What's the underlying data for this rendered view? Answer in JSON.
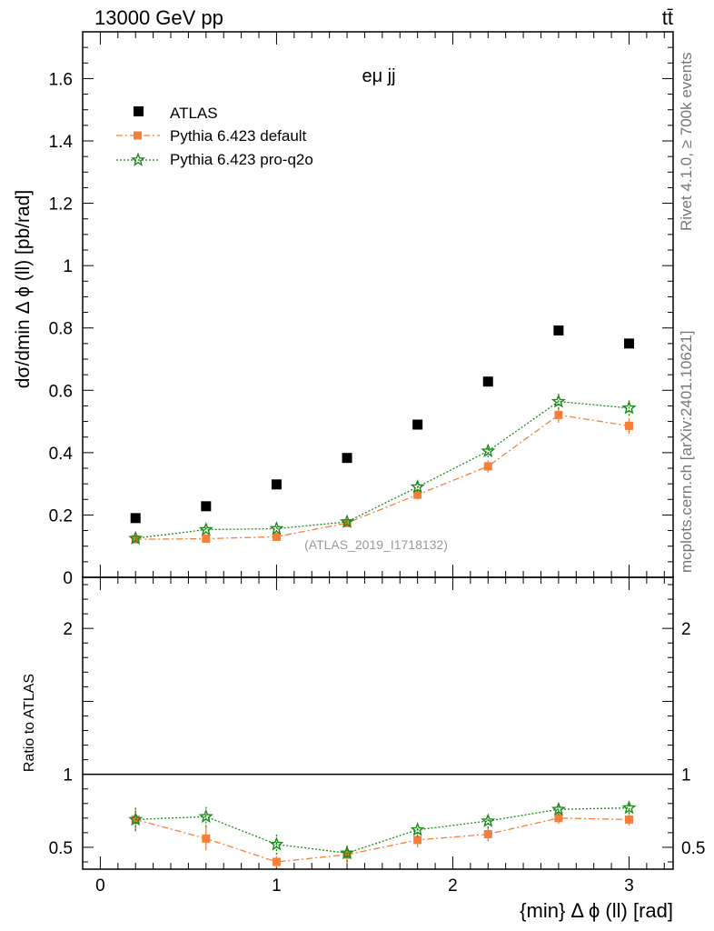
{
  "header": {
    "energy_label": "13000 GeV pp",
    "process_label": "tt̄",
    "channel_label": "eμ jj",
    "analysis_id": "(ATLAS_2019_I1718132)",
    "side_rivet": "Rivet 4.1.0, ≥ 700k events",
    "side_mcplots": "mcplots.cern.ch [arXiv:2401.10621]"
  },
  "legend": {
    "atlas": "ATLAS",
    "default": "Pythia 6.423 default",
    "proq2o": "Pythia 6.423 pro-q2o"
  },
  "colors": {
    "atlas": "#000000",
    "default": "#f47f3a",
    "proq2o": "#1a8a1a"
  },
  "chart_data": [
    {
      "type": "scatter",
      "panel": "main",
      "ylabel": "dσ/dmin Δ ϕ (ll) [pb/rad]",
      "ylim": [
        0,
        1.75
      ],
      "yticks": [
        0,
        0.2,
        0.4,
        0.6,
        0.8,
        1,
        1.2,
        1.4,
        1.6
      ],
      "ytick_labels": [
        "0",
        "0.2",
        "0.4",
        "0.6",
        "0.8",
        "1",
        "1.2",
        "1.4",
        "1.6"
      ],
      "x": [
        0.2,
        0.6,
        1.0,
        1.4,
        1.8,
        2.2,
        2.6,
        3.0
      ],
      "series": [
        {
          "name": "ATLAS",
          "key": "atlas",
          "values": [
            0.19,
            0.228,
            0.298,
            0.383,
            0.49,
            0.628,
            0.792,
            0.75
          ],
          "errors": [
            0,
            0,
            0,
            0,
            0,
            0,
            0,
            0
          ]
        },
        {
          "name": "Pythia 6.423 default",
          "key": "default",
          "values": [
            0.122,
            0.124,
            0.13,
            0.174,
            0.265,
            0.356,
            0.521,
            0.486
          ],
          "errors": [
            0.008,
            0.01,
            0.01,
            0.01,
            0.015,
            0.02,
            0.025,
            0.025
          ]
        },
        {
          "name": "Pythia 6.423 pro-q2o",
          "key": "proq2o",
          "values": [
            0.125,
            0.153,
            0.156,
            0.178,
            0.29,
            0.405,
            0.564,
            0.543
          ],
          "errors": [
            0.008,
            0.01,
            0.01,
            0.01,
            0.015,
            0.02,
            0.025,
            0.025
          ]
        }
      ]
    },
    {
      "type": "scatter",
      "panel": "ratio",
      "xlabel": "{min} Δ ϕ (ll) [rad]",
      "ylabel": "Ratio to ATLAS",
      "xlim": [
        -0.1,
        3.25
      ],
      "xticks": [
        0,
        1,
        2,
        3
      ],
      "xtick_labels": [
        "0",
        "1",
        "2",
        "3"
      ],
      "ylim": [
        0.35,
        2.35
      ],
      "yticks": [
        0.5,
        1,
        2
      ],
      "ytick_labels": [
        "0.5",
        "1",
        "2"
      ],
      "reference_line": 1,
      "x": [
        0.2,
        0.6,
        1.0,
        1.4,
        1.8,
        2.2,
        2.6,
        3.0
      ],
      "series": [
        {
          "name": "Pythia 6.423 default",
          "key": "default",
          "values": [
            0.69,
            0.56,
            0.4,
            0.45,
            0.55,
            0.59,
            0.7,
            0.69
          ],
          "errors": [
            0.08,
            0.08,
            0.04,
            0.06,
            0.05,
            0.05,
            0.04,
            0.04
          ]
        },
        {
          "name": "Pythia 6.423 pro-q2o",
          "key": "proq2o",
          "values": [
            0.69,
            0.71,
            0.52,
            0.46,
            0.62,
            0.68,
            0.76,
            0.77
          ],
          "errors": [
            0.08,
            0.07,
            0.07,
            0.06,
            0.05,
            0.05,
            0.04,
            0.04
          ]
        }
      ]
    }
  ]
}
